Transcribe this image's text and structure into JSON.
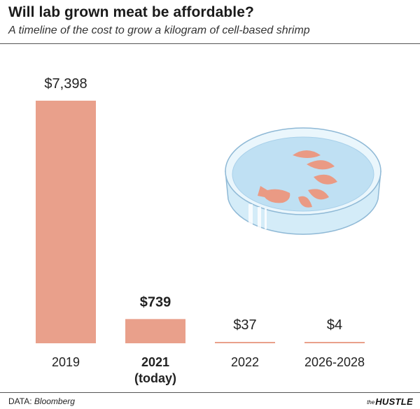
{
  "header": {
    "title": "Will lab grown meat be affordable?",
    "subtitle": "A timeline of the cost to grow a kilogram of cell-based shrimp"
  },
  "footer": {
    "source_label": "DATA:",
    "source_value": "Bloomberg",
    "brand_small": "the",
    "brand_name": "HUSTLE"
  },
  "colors": {
    "bar": "#e9a08b",
    "highlight_text": "#111111",
    "dish_fill": "#bfe0f3",
    "shrimp": "#ea9a84"
  },
  "illustration": "petri-dish-with-shrimp",
  "chart_data": {
    "type": "bar",
    "title": "Will lab grown meat be affordable?",
    "subtitle": "A timeline of the cost to grow a kilogram of cell-based shrimp",
    "categories": [
      {
        "label": "2019",
        "sublabel": "",
        "highlight": false
      },
      {
        "label": "2021",
        "sublabel": "(today)",
        "highlight": true
      },
      {
        "label": "2022",
        "sublabel": "",
        "highlight": false
      },
      {
        "label": "2026-2028",
        "sublabel": "",
        "highlight": false
      }
    ],
    "values": [
      7398,
      739,
      37,
      4
    ],
    "value_labels": [
      "$7,398",
      "$739",
      "$37",
      "$4"
    ],
    "unit": "$",
    "ylim": [
      0,
      7398
    ],
    "grid": false,
    "xlabel": "",
    "ylabel": ""
  }
}
